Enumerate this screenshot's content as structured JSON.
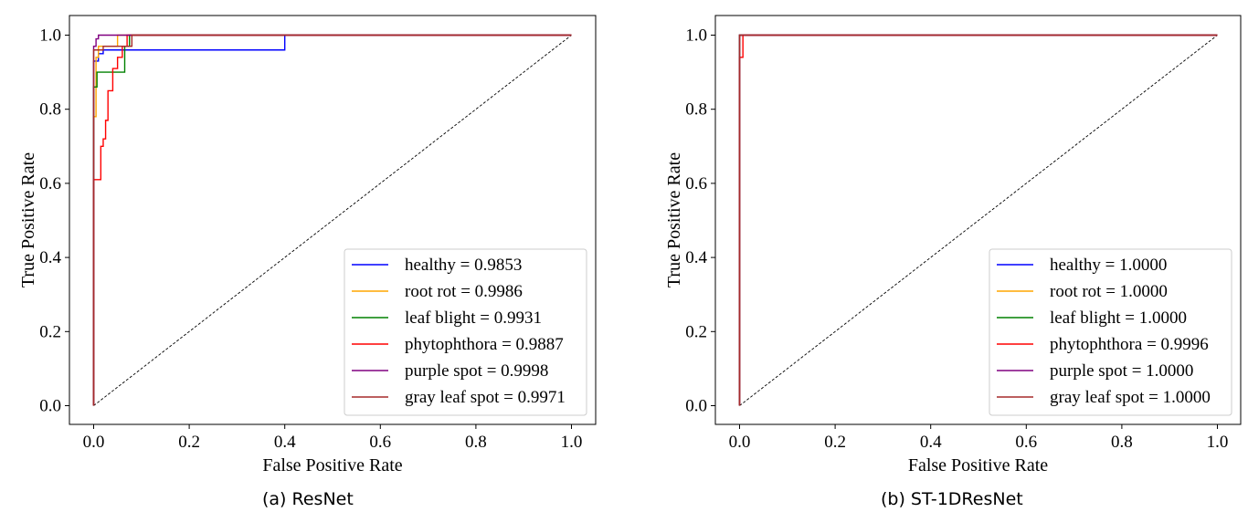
{
  "chart_data": [
    {
      "type": "line",
      "title": "",
      "caption": "(a) ResNet",
      "xlabel": "False Positive Rate",
      "ylabel": "True Positive Rate",
      "xlim": [
        0.0,
        1.0
      ],
      "ylim": [
        0.0,
        1.0
      ],
      "xticks": [
        "0.0",
        "0.2",
        "0.4",
        "0.6",
        "0.8",
        "1.0"
      ],
      "yticks": [
        "0.0",
        "0.2",
        "0.4",
        "0.6",
        "0.8",
        "1.0"
      ],
      "legend_position": "lower-right",
      "series": [
        {
          "name": "healthy",
          "label": "healthy = 0.9853",
          "auc": 0.9853,
          "color": "#0000ff",
          "x": [
            0,
            0,
            0.01,
            0.01,
            0.02,
            0.02,
            0.4,
            0.4,
            1.0
          ],
          "y": [
            0,
            0.93,
            0.93,
            0.95,
            0.95,
            0.96,
            0.96,
            1.0,
            1.0
          ]
        },
        {
          "name": "root rot",
          "label": "root rot = 0.9986",
          "auc": 0.9986,
          "color": "#ffa500",
          "x": [
            0,
            0,
            0.005,
            0.005,
            0.01,
            0.01,
            0.05,
            0.05,
            1.0
          ],
          "y": [
            0,
            0.78,
            0.78,
            0.94,
            0.94,
            0.97,
            0.97,
            1.0,
            1.0
          ]
        },
        {
          "name": "leaf blight",
          "label": "leaf blight = 0.9931",
          "auc": 0.9931,
          "color": "#008000",
          "x": [
            0,
            0,
            0.007,
            0.007,
            0.015,
            0.015,
            0.065,
            0.065,
            0.075,
            0.075,
            1.0
          ],
          "y": [
            0,
            0.86,
            0.86,
            0.9,
            0.9,
            0.9,
            0.9,
            0.97,
            0.97,
            1.0,
            1.0
          ]
        },
        {
          "name": "phytophthora",
          "label": "phytophthora = 0.9887",
          "auc": 0.9887,
          "color": "#ff0000",
          "x": [
            0,
            0,
            0.015,
            0.015,
            0.02,
            0.02,
            0.025,
            0.025,
            0.03,
            0.03,
            0.04,
            0.04,
            0.05,
            0.05,
            0.06,
            0.06,
            0.07,
            0.07,
            1.0
          ],
          "y": [
            0,
            0.61,
            0.61,
            0.7,
            0.7,
            0.72,
            0.72,
            0.77,
            0.77,
            0.85,
            0.85,
            0.91,
            0.91,
            0.94,
            0.94,
            0.97,
            0.97,
            1.0,
            1.0
          ]
        },
        {
          "name": "purple spot",
          "label": "purple spot = 0.9998",
          "auc": 0.9998,
          "color": "#800080",
          "x": [
            0,
            0,
            0.005,
            0.005,
            0.01,
            0.01,
            1.0
          ],
          "y": [
            0,
            0.97,
            0.97,
            0.99,
            0.99,
            1.0,
            1.0
          ]
        },
        {
          "name": "gray leaf spot",
          "label": "gray leaf spot = 0.9971",
          "auc": 0.9971,
          "color": "#a52a2a",
          "x": [
            0,
            0,
            0.01,
            0.01,
            0.02,
            0.02,
            0.08,
            0.08,
            1.0
          ],
          "y": [
            0,
            0.96,
            0.96,
            0.96,
            0.96,
            0.97,
            0.97,
            1.0,
            1.0
          ]
        }
      ],
      "diagonal": {
        "x": [
          0,
          1
        ],
        "y": [
          0,
          1
        ],
        "style": "dashed",
        "color": "#000000"
      }
    },
    {
      "type": "line",
      "title": "",
      "caption": "(b) ST-1DResNet",
      "xlabel": "False Positive Rate",
      "ylabel": "True Positive Rate",
      "xlim": [
        0.0,
        1.0
      ],
      "ylim": [
        0.0,
        1.0
      ],
      "xticks": [
        "0.0",
        "0.2",
        "0.4",
        "0.6",
        "0.8",
        "1.0"
      ],
      "yticks": [
        "0.0",
        "0.2",
        "0.4",
        "0.6",
        "0.8",
        "1.0"
      ],
      "legend_position": "lower-right",
      "series": [
        {
          "name": "healthy",
          "label": "healthy = 1.0000",
          "auc": 1.0,
          "color": "#0000ff",
          "x": [
            0,
            0,
            1.0
          ],
          "y": [
            0,
            1.0,
            1.0
          ]
        },
        {
          "name": "root rot",
          "label": "root rot = 1.0000",
          "auc": 1.0,
          "color": "#ffa500",
          "x": [
            0,
            0,
            1.0
          ],
          "y": [
            0,
            1.0,
            1.0
          ]
        },
        {
          "name": "leaf blight",
          "label": "leaf blight = 1.0000",
          "auc": 1.0,
          "color": "#008000",
          "x": [
            0,
            0,
            1.0
          ],
          "y": [
            0,
            1.0,
            1.0
          ]
        },
        {
          "name": "phytophthora",
          "label": "phytophthora = 0.9996",
          "auc": 0.9996,
          "color": "#ff0000",
          "x": [
            0,
            0,
            0.007,
            0.007,
            1.0
          ],
          "y": [
            0,
            0.94,
            0.94,
            1.0,
            1.0
          ]
        },
        {
          "name": "purple spot",
          "label": "purple spot = 1.0000",
          "auc": 1.0,
          "color": "#800080",
          "x": [
            0,
            0,
            1.0
          ],
          "y": [
            0,
            1.0,
            1.0
          ]
        },
        {
          "name": "gray leaf spot",
          "label": "gray leaf spot = 1.0000",
          "auc": 1.0,
          "color": "#a52a2a",
          "x": [
            0,
            0,
            1.0
          ],
          "y": [
            0,
            1.0,
            1.0
          ]
        }
      ],
      "diagonal": {
        "x": [
          0,
          1
        ],
        "y": [
          0,
          1
        ],
        "style": "dashed",
        "color": "#000000"
      }
    }
  ]
}
